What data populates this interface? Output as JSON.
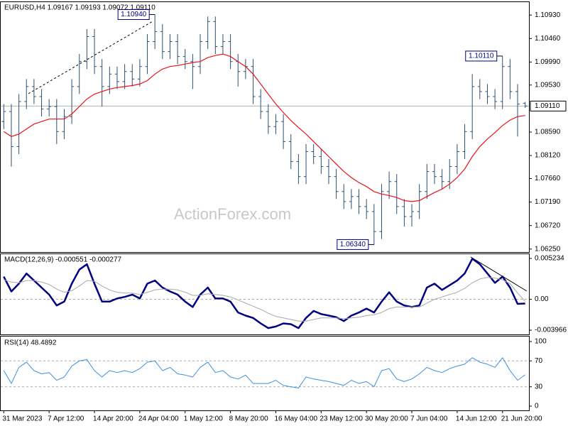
{
  "chart_data": [
    {
      "type": "ohlc",
      "title": "EURUSD,H4  1.09167 1.09193 1.09072 1.09110",
      "color": "#2f4f6f",
      "open": [
        1.088,
        1.09,
        1.083,
        1.092,
        1.095,
        1.093,
        1.0905,
        1.091,
        1.086,
        1.089,
        1.095,
        1.1,
        1.105,
        1.099,
        1.095,
        1.0975,
        1.096,
        1.098,
        1.0965,
        1.099,
        1.104,
        1.106,
        1.102,
        1.104,
        1.101,
        1.1,
        1.099,
        1.104,
        1.108,
        1.103,
        1.104,
        1.1,
        1.098,
        1.099,
        1.093,
        1.09,
        1.087,
        1.088,
        1.084,
        1.08,
        1.077,
        1.082,
        1.081,
        1.079,
        1.077,
        1.074,
        1.072,
        1.073,
        1.071,
        1.07,
        1.066,
        1.074,
        1.076,
        1.071,
        1.069,
        1.07,
        1.074,
        1.078,
        1.077,
        1.076,
        1.079,
        1.082,
        1.086,
        1.095,
        1.094,
        1.093,
        1.092,
        1.099,
        1.094,
        1.09167
      ],
      "high": [
        1.0915,
        1.0915,
        1.0935,
        1.0965,
        1.0965,
        1.0945,
        1.0925,
        1.0925,
        1.0905,
        1.0965,
        1.1015,
        1.1065,
        1.1065,
        1.1005,
        1.099,
        1.099,
        1.0995,
        1.0995,
        1.1005,
        1.1055,
        1.1094,
        1.1075,
        1.1055,
        1.1055,
        1.1025,
        1.1015,
        1.1055,
        1.109,
        1.109,
        1.1055,
        1.1055,
        1.1015,
        1.1005,
        1.1005,
        1.0945,
        1.0915,
        1.0895,
        1.0895,
        1.0855,
        1.0815,
        1.0835,
        1.0835,
        1.0825,
        1.0805,
        1.0785,
        1.0755,
        1.0745,
        1.0745,
        1.0725,
        1.0715,
        1.0755,
        1.078,
        1.0775,
        1.0725,
        1.0715,
        1.0755,
        1.0795,
        1.0795,
        1.0785,
        1.0805,
        1.0835,
        1.0875,
        1.0975,
        1.0965,
        1.0955,
        1.0945,
        1.1011,
        1.1005,
        1.0955,
        1.09193
      ],
      "low": [
        1.0865,
        1.079,
        1.0815,
        1.0905,
        1.0915,
        1.089,
        1.089,
        1.0835,
        1.0845,
        1.0875,
        1.0935,
        1.0985,
        1.0975,
        1.091,
        1.0935,
        1.0945,
        1.0945,
        1.095,
        1.095,
        1.0975,
        1.1025,
        1.1005,
        1.1005,
        1.0995,
        1.0985,
        1.0945,
        1.0975,
        1.1025,
        1.1015,
        1.1015,
        1.0985,
        1.095,
        1.0965,
        1.0915,
        1.0885,
        1.0855,
        1.0855,
        1.0825,
        1.0785,
        1.0755,
        1.0755,
        1.0795,
        1.0775,
        1.0755,
        1.0725,
        1.0705,
        1.0705,
        1.0695,
        1.0685,
        1.0634,
        1.0645,
        1.0725,
        1.0695,
        1.067,
        1.067,
        1.0685,
        1.0725,
        1.0755,
        1.0745,
        1.0745,
        1.0775,
        1.0805,
        1.0845,
        1.0925,
        1.0915,
        1.0905,
        1.0905,
        1.0925,
        1.085,
        1.09072
      ],
      "close": [
        1.09,
        1.083,
        1.092,
        1.095,
        1.093,
        1.0905,
        1.091,
        1.086,
        1.089,
        1.095,
        1.1,
        1.105,
        1.099,
        1.095,
        1.0975,
        1.096,
        1.098,
        1.0965,
        1.099,
        1.104,
        1.106,
        1.102,
        1.104,
        1.101,
        1.1,
        1.099,
        1.104,
        1.108,
        1.103,
        1.104,
        1.1,
        1.098,
        1.099,
        1.093,
        1.09,
        1.087,
        1.088,
        1.084,
        1.08,
        1.077,
        1.082,
        1.081,
        1.079,
        1.077,
        1.074,
        1.072,
        1.073,
        1.071,
        1.07,
        1.066,
        1.074,
        1.076,
        1.071,
        1.069,
        1.07,
        1.074,
        1.078,
        1.077,
        1.076,
        1.079,
        1.082,
        1.086,
        1.095,
        1.094,
        1.093,
        1.092,
        1.099,
        1.094,
        1.0915,
        1.0911
      ],
      "moving_average": {
        "color": "#e8141b",
        "values": [
          1.086,
          1.085,
          1.0855,
          1.0865,
          1.0875,
          1.088,
          1.0885,
          1.0885,
          1.0885,
          1.0895,
          1.091,
          1.0925,
          1.0935,
          1.094,
          1.0945,
          1.0948,
          1.095,
          1.0952,
          1.0955,
          1.0962,
          1.0975,
          1.0985,
          1.099,
          1.0992,
          1.0995,
          1.0998,
          1.1,
          1.1008,
          1.1012,
          1.1015,
          1.101,
          1.1,
          1.099,
          1.0975,
          1.0955,
          1.0935,
          1.0915,
          1.0898,
          1.0882,
          1.0868,
          1.0855,
          1.084,
          1.0825,
          1.081,
          1.0795,
          1.078,
          1.0768,
          1.0758,
          1.075,
          1.074,
          1.0735,
          1.0732,
          1.0728,
          1.0722,
          1.072,
          1.0722,
          1.073,
          1.0738,
          1.0745,
          1.0755,
          1.0768,
          1.0785,
          1.081,
          1.083,
          1.0845,
          1.0858,
          1.0872,
          1.0883,
          1.089,
          1.0892
        ]
      },
      "ylim": [
        1.0619,
        1.1116
      ],
      "yticks": [
        {
          "value": 1.1093,
          "label": "1.10930"
        },
        {
          "value": 1.1046,
          "label": "1.10460"
        },
        {
          "value": 1.0999,
          "label": "1.09990"
        },
        {
          "value": 1.0953,
          "label": "1.09530"
        },
        {
          "value": 1.0859,
          "label": "1.08590"
        },
        {
          "value": 1.0812,
          "label": "1.08120"
        },
        {
          "value": 1.0766,
          "label": "1.07660"
        },
        {
          "value": 1.0719,
          "label": "1.07190"
        },
        {
          "value": 1.0672,
          "label": "1.06720"
        },
        {
          "value": 1.0625,
          "label": "1.06250"
        }
      ],
      "last_price": {
        "value": 1.0911,
        "label": "1.09110"
      },
      "annotations": [
        {
          "value": 1.1094,
          "label": "1.10940"
        },
        {
          "value": 1.1011,
          "label": "1.10110"
        },
        {
          "value": 1.0634,
          "label": "1.06340"
        }
      ],
      "watermark": "ActionForex.com",
      "grid": false
    },
    {
      "type": "line",
      "title": "MACD(12,26,9) -0.000551 -0.000277",
      "series": [
        {
          "color": "#000080",
          "width": 2.5,
          "values": [
            0.0029,
            0.001,
            0.002,
            0.0033,
            0.0024,
            0.0015,
            0.0006,
            -0.0008,
            -0.0003,
            0.002,
            0.0038,
            0.0045,
            0.002,
            -0.0003,
            -0.0003,
            0.0001,
            0.0003,
            0.0006,
            0.0001,
            0.002,
            0.0024,
            0.0015,
            0.001,
            0.0006,
            -0.0003,
            -0.001,
            0.0006,
            0.0015,
            0.0001,
            0.0001,
            -0.0003,
            -0.0017,
            -0.0021,
            -0.0024,
            -0.0031,
            -0.0037,
            -0.0035,
            -0.0031,
            -0.0032,
            -0.0037,
            -0.0024,
            -0.0015,
            -0.0019,
            -0.0021,
            -0.0023,
            -0.0028,
            -0.0021,
            -0.0017,
            -0.0012,
            -0.0017,
            -0.0003,
            0.0009,
            -0.0003,
            -0.0008,
            -0.001,
            -0.0008,
            0.0015,
            0.002,
            0.0012,
            0.0018,
            0.0024,
            0.0033,
            0.0052,
            0.0045,
            0.0033,
            0.0021,
            0.0029,
            0.0015,
            -0.0006,
            -0.000551
          ]
        },
        {
          "color": "#a8a8a8",
          "width": 1,
          "values": [
            0.0025,
            0.0022,
            0.0021,
            0.0024,
            0.0024,
            0.0022,
            0.0019,
            0.0013,
            0.0009,
            0.0011,
            0.0017,
            0.0024,
            0.0023,
            0.0017,
            0.0012,
            0.0009,
            0.0008,
            0.0008,
            0.0006,
            0.0009,
            0.0012,
            0.0013,
            0.0013,
            0.0012,
            0.0009,
            0.0005,
            0.0005,
            0.0007,
            0.0006,
            0.0005,
            0.0003,
            -0.0001,
            -0.0005,
            -0.0009,
            -0.0013,
            -0.0018,
            -0.0022,
            -0.0024,
            -0.0026,
            -0.0028,
            -0.0028,
            -0.0026,
            -0.0024,
            -0.0024,
            -0.0024,
            -0.0025,
            -0.0024,
            -0.0023,
            -0.0021,
            -0.002,
            -0.0017,
            -0.0012,
            -0.001,
            -0.001,
            -0.001,
            -0.001,
            -0.0005,
            0.0,
            0.0003,
            0.0006,
            0.0009,
            0.0014,
            0.0021,
            0.0026,
            0.0028,
            0.0027,
            0.0025,
            0.002,
            0.0008,
            -0.000277
          ]
        }
      ],
      "ylim": [
        -0.003966,
        0.005234
      ],
      "yticks": [
        0.005234,
        {
          "value": 0,
          "label": "0.00"
        },
        -0.003966
      ],
      "grid": true
    },
    {
      "type": "line",
      "title": "RSI(14) 48.4892",
      "series": [
        {
          "color": "#3d8fdc",
          "width": 1,
          "values": [
            55,
            35,
            60,
            68,
            55,
            50,
            52,
            40,
            45,
            62,
            70,
            72,
            55,
            45,
            55,
            52,
            55,
            52,
            58,
            68,
            70,
            55,
            60,
            50,
            48,
            45,
            60,
            68,
            52,
            55,
            45,
            42,
            48,
            35,
            35,
            35,
            40,
            32,
            30,
            28,
            45,
            42,
            40,
            38,
            35,
            32,
            40,
            35,
            38,
            30,
            55,
            58,
            42,
            38,
            42,
            50,
            60,
            55,
            52,
            58,
            62,
            65,
            75,
            68,
            65,
            60,
            75,
            55,
            40,
            48.4892
          ]
        }
      ],
      "ylim": [
        0,
        100
      ],
      "yticks": [
        100,
        70,
        30,
        0
      ],
      "grid": true,
      "xlim": [
        -0.5,
        69.5
      ],
      "xticks": [
        {
          "value": 0,
          "label": "31 Mar 2023"
        },
        {
          "value": 6,
          "label": "7 Apr 12:00"
        },
        {
          "value": 12,
          "label": "14 Apr 20:00"
        },
        {
          "value": 18,
          "label": "24 Apr 04:00"
        },
        {
          "value": 24,
          "label": "1 May 12:00"
        },
        {
          "value": 30,
          "label": "8 May 20:00"
        },
        {
          "value": 36,
          "label": "16 May 04:00"
        },
        {
          "value": 42,
          "label": "23 May 12:00"
        },
        {
          "value": 48,
          "label": "30 May 20:00"
        },
        {
          "value": 54,
          "label": "7 Jun 04:00"
        },
        {
          "value": 60,
          "label": "14 Jun 12:00"
        },
        {
          "value": 66,
          "label": "21 Jun 20:00"
        }
      ]
    }
  ]
}
